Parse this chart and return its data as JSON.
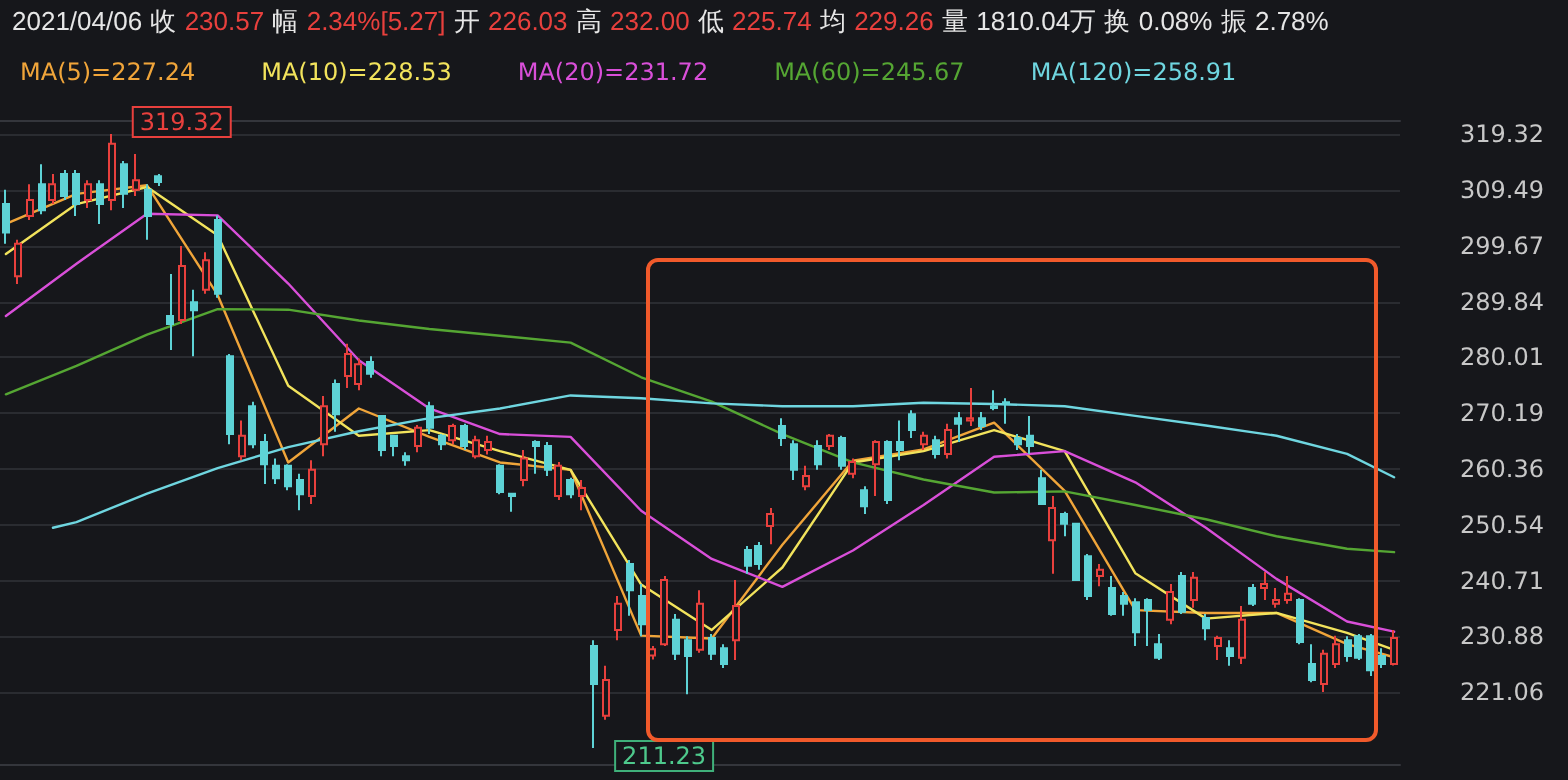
{
  "chart_data": {
    "type": "candlestick",
    "annotations": [
      "2021/04/06 收 230.57 幅 2.34%[5.27] 开 226.03 高 232.00 低 225.74 均 229.26 量 1810.04万 换 0.08% 振 2.78%",
      "319.32",
      "211.23"
    ],
    "categories": [
      null,
      null,
      null,
      null,
      null,
      null,
      null,
      null,
      null,
      null,
      null,
      null,
      null,
      null,
      null,
      null,
      null,
      null,
      null,
      null,
      null,
      null,
      null,
      null,
      null,
      null,
      null,
      null,
      null,
      null,
      null,
      null,
      null,
      null,
      null,
      null,
      null,
      null,
      null,
      null,
      null,
      null,
      null,
      null,
      null,
      null,
      null,
      null,
      null,
      null,
      null,
      null,
      null,
      null,
      null,
      null,
      null,
      null,
      null,
      null,
      null,
      null,
      null,
      null,
      null,
      null,
      null,
      null,
      null,
      null,
      null,
      null,
      null,
      null,
      null,
      null,
      null,
      null,
      null,
      null,
      null,
      null,
      null,
      null,
      null,
      null,
      null,
      null,
      null,
      null,
      null,
      null,
      null,
      null,
      null,
      null,
      null,
      null,
      null,
      null,
      null,
      null,
      null,
      null,
      null,
      null,
      null,
      null,
      null,
      null,
      null,
      null,
      null,
      null,
      null,
      null,
      null,
      null,
      null
    ],
    "colors": [
      "#5ed3d6",
      "#e8403d",
      "#e8403d",
      "#5ed3d6",
      "#e8403d",
      "#5ed3d6",
      "#5ed3d6",
      "#e8403d",
      "#5ed3d6",
      "#e8403d",
      "#5ed3d6",
      "#e8403d",
      "#5ed3d6",
      "#5ed3d6",
      "#5ed3d6",
      "#e8403d",
      "#5ed3d6",
      "#e8403d",
      "#5ed3d6",
      "#5ed3d6",
      "#e8403d",
      "#5ed3d6",
      "#5ed3d6",
      "#5ed3d6",
      "#5ed3d6",
      "#5ed3d6",
      "#e8403d",
      "#e8403d",
      "#5ed3d6",
      "#e8403d",
      "#e8403d",
      "#5ed3d6",
      "#5ed3d6",
      "#5ed3d6",
      "#5ed3d6",
      "#e8403d",
      "#5ed3d6",
      "#5ed3d6",
      "#e8403d",
      "#5ed3d6",
      "#e8403d",
      "#e8403d",
      "#5ed3d6",
      "#5ed3d6",
      "#e8403d",
      "#5ed3d6",
      "#5ed3d6",
      "#e8403d",
      "#5ed3d6",
      "#e8403d",
      "#5ed3d6",
      "#e8403d",
      "#e8403d",
      "#5ed3d6",
      "#5ed3d6",
      "#e8403d",
      "#e8403d",
      "#5ed3d6",
      "#5ed3d6",
      "#e8403d",
      "#5ed3d6",
      "#5ed3d6",
      "#e8403d",
      "#5ed3d6",
      "#5ed3d6",
      "#e8403d",
      "#5ed3d6",
      "#5ed3d6",
      "#e8403d",
      "#5ed3d6",
      "#e8403d",
      "#5ed3d6",
      "#e8403d",
      "#5ed3d6",
      "#e8403d",
      "#5ed3d6",
      "#5ed3d6",
      "#5ed3d6",
      "#e8403d",
      "#5ed3d6",
      "#e8403d",
      "#5ed3d6",
      "#e8403d",
      "#5ed3d6",
      "#5ed3d6",
      "#5ed3d6",
      "#5ed3d6",
      "#5ed3d6",
      "#5ed3d6",
      "#e8403d",
      "#5ed3d6",
      "#5ed3d6",
      "#5ed3d6",
      "#e8403d",
      "#5ed3d6",
      "#5ed3d6",
      "#5ed3d6",
      "#5ed3d6",
      "#5ed3d6",
      "#e8403d",
      "#5ed3d6",
      "#e8403d",
      "#5ed3d6",
      "#e8403d",
      "#5ed3d6",
      "#e8403d",
      "#5ed3d6",
      "#e8403d",
      "#e8403d",
      "#e8403d",
      "#5ed3d6",
      "#5ed3d6",
      "#e8403d",
      "#e8403d",
      "#5ed3d6",
      "#5ed3d6",
      "#5ed3d6",
      "#5ed3d6",
      "#e8403d"
    ],
    "ohlc": [
      [
        307.0,
        309.5,
        300.0,
        302.0
      ],
      [
        294.3,
        300.7,
        292.9,
        300.0
      ],
      [
        304.9,
        310.5,
        304.2,
        307.7
      ],
      [
        310.5,
        314.0,
        305.2,
        305.9
      ],
      [
        307.7,
        312.3,
        307.0,
        310.5
      ],
      [
        312.3,
        313.0,
        307.7,
        308.4
      ],
      [
        312.3,
        313.0,
        304.9,
        307.0
      ],
      [
        307.7,
        311.2,
        306.3,
        310.5
      ],
      [
        310.5,
        311.2,
        303.5,
        307.0
      ],
      [
        307.7,
        319.32,
        305.9,
        317.6
      ],
      [
        314.0,
        314.6,
        306.3,
        308.8
      ],
      [
        309.5,
        315.8,
        308.4,
        311.2
      ],
      [
        309.5,
        310.5,
        300.7,
        304.9
      ],
      [
        311.9,
        312.3,
        310.2,
        310.9
      ],
      [
        287.3,
        294.7,
        281.3,
        285.9
      ],
      [
        286.6,
        299.6,
        285.9,
        296.1
      ],
      [
        289.7,
        291.9,
        280.2,
        288.3
      ],
      [
        291.9,
        298.5,
        291.2,
        297.1
      ],
      [
        304.2,
        305.0,
        290.5,
        291.2
      ],
      [
        280.2,
        280.6,
        264.7,
        266.5
      ],
      [
        262.6,
        268.9,
        261.9,
        266.2
      ],
      [
        271.4,
        272.2,
        264.0,
        264.7
      ],
      [
        265.1,
        266.5,
        257.7,
        261.2
      ],
      [
        260.9,
        262.2,
        257.7,
        258.7
      ],
      [
        260.9,
        261.2,
        256.6,
        257.3
      ],
      [
        258.4,
        259.5,
        253.1,
        255.9
      ],
      [
        255.6,
        261.9,
        254.2,
        260.2
      ],
      [
        264.7,
        273.2,
        262.6,
        271.4
      ],
      [
        275.3,
        276.1,
        266.9,
        270.0
      ],
      [
        276.7,
        282.4,
        274.6,
        280.6
      ],
      [
        275.3,
        279.8,
        274.2,
        278.8
      ],
      [
        279.2,
        280.2,
        276.4,
        277.1
      ],
      [
        269.7,
        269.7,
        262.6,
        263.7
      ],
      [
        266.2,
        266.2,
        262.6,
        264.4
      ],
      [
        262.6,
        263.3,
        260.9,
        261.9
      ],
      [
        264.4,
        268.1,
        263.3,
        267.6
      ],
      [
        271.4,
        272.2,
        266.5,
        267.6
      ],
      [
        266.2,
        266.5,
        263.7,
        264.7
      ],
      [
        265.4,
        268.3,
        264.7,
        267.9
      ],
      [
        267.9,
        268.3,
        263.7,
        264.4
      ],
      [
        262.6,
        266.2,
        262.2,
        265.4
      ],
      [
        263.7,
        266.2,
        262.9,
        265.1
      ],
      [
        260.9,
        261.2,
        255.9,
        256.3
      ],
      [
        256.0,
        256.0,
        252.8,
        255.6
      ],
      [
        258.4,
        263.7,
        257.3,
        262.2
      ],
      [
        265.1,
        265.4,
        259.5,
        264.4
      ],
      [
        264.4,
        265.1,
        259.1,
        260.2
      ],
      [
        255.6,
        261.6,
        254.9,
        260.9
      ],
      [
        258.4,
        258.8,
        255.2,
        255.9
      ],
      [
        255.6,
        258.4,
        253.1,
        257.0
      ],
      [
        229.2,
        230.2,
        211.23,
        222.5
      ],
      [
        216.9,
        225.7,
        216.2,
        223.2
      ],
      [
        232.0,
        238.0,
        230.2,
        236.6
      ],
      [
        243.6,
        244.3,
        234.5,
        239.0
      ],
      [
        238.0,
        240.1,
        230.9,
        233.0
      ],
      [
        227.5,
        229.2,
        226.8,
        228.6
      ],
      [
        229.5,
        241.5,
        229.2,
        240.8
      ],
      [
        233.8,
        234.8,
        226.7,
        227.8
      ],
      [
        230.2,
        230.9,
        220.7,
        227.4
      ],
      [
        228.5,
        239.0,
        228.0,
        236.6
      ],
      [
        230.6,
        231.3,
        226.7,
        227.8
      ],
      [
        228.8,
        229.5,
        225.3,
        226.0
      ],
      [
        230.2,
        240.8,
        226.7,
        236.2
      ],
      [
        246.1,
        246.8,
        241.9,
        243.3
      ],
      [
        246.8,
        247.5,
        242.6,
        243.6
      ],
      [
        250.3,
        253.5,
        247.1,
        252.4
      ],
      [
        267.9,
        269.3,
        264.4,
        265.8
      ],
      [
        264.7,
        265.4,
        258.4,
        260.2
      ],
      [
        257.3,
        260.9,
        256.6,
        259.1
      ],
      [
        264.4,
        265.4,
        260.2,
        261.2
      ],
      [
        264.4,
        266.5,
        263.7,
        266.2
      ],
      [
        265.8,
        266.2,
        260.2,
        260.9
      ],
      [
        259.5,
        262.2,
        258.7,
        261.6
      ],
      [
        256.6,
        257.3,
        252.4,
        253.8
      ],
      [
        261.2,
        265.4,
        255.6,
        265.1
      ],
      [
        265.1,
        265.4,
        254.2,
        254.9
      ],
      [
        265.1,
        268.9,
        261.9,
        263.7
      ],
      [
        270.0,
        270.7,
        265.8,
        267.2
      ],
      [
        264.7,
        266.9,
        263.7,
        266.2
      ],
      [
        265.4,
        266.2,
        262.2,
        263.0
      ],
      [
        263.0,
        268.3,
        262.2,
        267.2
      ],
      [
        269.3,
        270.4,
        265.1,
        268.3
      ],
      [
        268.9,
        274.6,
        267.9,
        269.3
      ],
      [
        269.3,
        270.4,
        267.2,
        267.9
      ],
      [
        271.4,
        274.2,
        270.7,
        271.1
      ],
      [
        272.1,
        272.8,
        268.3,
        271.8
      ],
      [
        265.8,
        266.5,
        263.7,
        264.7
      ],
      [
        266.2,
        269.7,
        263.0,
        264.4
      ],
      [
        258.7,
        260.2,
        254.2,
        254.2
      ],
      [
        247.8,
        255.6,
        241.9,
        253.5
      ],
      [
        252.4,
        252.8,
        248.5,
        250.7
      ],
      [
        250.7,
        250.7,
        240.8,
        240.8
      ],
      [
        245.0,
        245.4,
        237.3,
        238.0
      ],
      [
        241.5,
        243.6,
        239.7,
        242.6
      ],
      [
        239.4,
        241.5,
        234.5,
        234.8
      ],
      [
        238.0,
        238.7,
        234.5,
        236.6
      ],
      [
        236.9,
        237.6,
        229.2,
        231.6
      ],
      [
        237.3,
        237.6,
        229.2,
        235.5
      ],
      [
        229.5,
        231.3,
        226.7,
        227.1
      ],
      [
        233.8,
        240.1,
        233.0,
        238.7
      ],
      [
        241.5,
        242.2,
        234.8,
        235.2
      ],
      [
        237.3,
        242.2,
        235.9,
        241.2
      ],
      [
        234.1,
        234.8,
        230.2,
        232.3
      ],
      [
        229.2,
        231.0,
        226.7,
        230.6
      ],
      [
        228.8,
        230.2,
        225.7,
        227.4
      ],
      [
        227.1,
        236.2,
        226.0,
        233.8
      ],
      [
        239.4,
        240.1,
        236.2,
        236.6
      ],
      [
        239.4,
        242.2,
        237.3,
        240.1
      ],
      [
        236.6,
        239.4,
        235.9,
        237.3
      ],
      [
        237.3,
        241.5,
        236.6,
        238.4
      ],
      [
        237.3,
        237.6,
        229.5,
        229.9
      ],
      [
        226.0,
        229.5,
        222.8,
        223.2
      ],
      [
        222.5,
        228.5,
        221.1,
        227.8
      ],
      [
        226.0,
        231.0,
        225.3,
        229.5
      ],
      [
        230.2,
        230.9,
        226.4,
        227.4
      ],
      [
        230.9,
        231.3,
        226.7,
        227.1
      ],
      [
        230.9,
        231.3,
        223.9,
        224.9
      ],
      [
        227.4,
        228.8,
        225.3,
        226.0
      ],
      [
        226.03,
        232.0,
        225.74,
        230.57
      ]
    ],
    "series": [
      {
        "type": "line",
        "name": "MA(5)=227.24",
        "color": "#f0a53a",
        "values": [
          303.5,
          null,
          null,
          null,
          null,
          null,
          308.8,
          null,
          null,
          null,
          null,
          null,
          310.3,
          null,
          null,
          null,
          null,
          null,
          291.0,
          null,
          null,
          null,
          null,
          null,
          261.5,
          null,
          null,
          null,
          null,
          null,
          271.0,
          null,
          null,
          null,
          null,
          null,
          266.0,
          null,
          null,
          null,
          null,
          null,
          261.5,
          null,
          null,
          null,
          null,
          null,
          260.2,
          null,
          null,
          null,
          null,
          null,
          231.0,
          null,
          null,
          null,
          null,
          null,
          230.5,
          null,
          null,
          null,
          null,
          null,
          247.0,
          null,
          null,
          null,
          null,
          null,
          261.8,
          null,
          null,
          null,
          null,
          null,
          263.8,
          null,
          null,
          null,
          null,
          null,
          268.5,
          null,
          null,
          null,
          null,
          null,
          256.5,
          null,
          null,
          null,
          null,
          null,
          235.5,
          null,
          null,
          null,
          null,
          null,
          235.0,
          null,
          null,
          null,
          null,
          null,
          235.0,
          null,
          null,
          null,
          null,
          null,
          229.5,
          null,
          null,
          null,
          227.2
        ]
      },
      {
        "type": "line",
        "name": "MA(10)=228.53",
        "color": "#f2e35c",
        "values": [
          298.2,
          null,
          null,
          null,
          null,
          null,
          307.0,
          null,
          null,
          null,
          null,
          null,
          310.0,
          null,
          null,
          null,
          null,
          null,
          301.5,
          null,
          null,
          null,
          null,
          null,
          275.0,
          null,
          null,
          null,
          null,
          null,
          266.2,
          null,
          null,
          null,
          null,
          null,
          267.2,
          null,
          null,
          null,
          null,
          null,
          263.5,
          null,
          null,
          null,
          null,
          null,
          260.2,
          null,
          null,
          null,
          null,
          null,
          240.0,
          null,
          null,
          null,
          null,
          null,
          232.0,
          null,
          null,
          null,
          null,
          null,
          243.0,
          null,
          null,
          null,
          null,
          null,
          261.5,
          null,
          null,
          null,
          null,
          null,
          263.5,
          null,
          null,
          null,
          null,
          null,
          267.2,
          null,
          null,
          null,
          null,
          null,
          263.5,
          null,
          null,
          null,
          null,
          null,
          242.0,
          null,
          null,
          null,
          null,
          null,
          234.0,
          null,
          null,
          null,
          null,
          null,
          235.0,
          null,
          null,
          null,
          null,
          null,
          231.5,
          null,
          null,
          null,
          228.5
        ]
      },
      {
        "type": "line",
        "name": "MA(20)=231.72",
        "color": "#d94fd9",
        "values": [
          287.3,
          null,
          null,
          null,
          null,
          null,
          296.5,
          null,
          null,
          null,
          null,
          null,
          305.3,
          null,
          null,
          null,
          null,
          null,
          305.0,
          null,
          null,
          null,
          null,
          null,
          293.0,
          null,
          null,
          null,
          null,
          null,
          279.5,
          null,
          null,
          null,
          null,
          null,
          271.0,
          null,
          null,
          null,
          null,
          null,
          266.5,
          null,
          null,
          null,
          null,
          null,
          266.0,
          null,
          null,
          null,
          null,
          null,
          253.0,
          null,
          null,
          null,
          null,
          null,
          244.5,
          null,
          null,
          null,
          null,
          null,
          239.6,
          null,
          null,
          null,
          null,
          null,
          246.0,
          null,
          null,
          null,
          null,
          null,
          254.0,
          null,
          null,
          null,
          null,
          null,
          262.5,
          null,
          null,
          null,
          null,
          null,
          263.5,
          null,
          null,
          null,
          null,
          null,
          258.0,
          null,
          null,
          null,
          null,
          null,
          250.0,
          null,
          null,
          null,
          null,
          null,
          241.0,
          null,
          null,
          null,
          null,
          null,
          233.5,
          null,
          null,
          null,
          231.7
        ]
      },
      {
        "type": "line",
        "name": "MA(60)=245.67",
        "color": "#55a633",
        "values": [
          273.5,
          null,
          null,
          null,
          null,
          null,
          278.5,
          null,
          null,
          null,
          null,
          null,
          284.0,
          null,
          null,
          null,
          null,
          null,
          288.5,
          null,
          null,
          null,
          null,
          null,
          288.4,
          null,
          null,
          null,
          null,
          null,
          286.5,
          null,
          null,
          null,
          null,
          null,
          285.0,
          null,
          null,
          null,
          null,
          null,
          283.8,
          null,
          null,
          null,
          null,
          null,
          282.6,
          null,
          null,
          null,
          null,
          null,
          276.5,
          null,
          null,
          null,
          null,
          null,
          272.2,
          null,
          null,
          null,
          null,
          null,
          266.5,
          null,
          null,
          null,
          null,
          null,
          261.5,
          null,
          null,
          null,
          null,
          null,
          258.5,
          null,
          null,
          null,
          null,
          null,
          256.2,
          null,
          null,
          null,
          null,
          null,
          256.4,
          null,
          null,
          null,
          null,
          null,
          254.0,
          null,
          null,
          null,
          null,
          null,
          251.5,
          null,
          null,
          null,
          null,
          null,
          248.5,
          null,
          null,
          null,
          null,
          null,
          246.3,
          null,
          null,
          null,
          245.7
        ]
      },
      {
        "type": "line",
        "name": "MA(120)=258.91",
        "color": "#6fd6e0",
        "values": [
          null,
          null,
          null,
          null,
          250.0,
          null,
          251.0,
          null,
          null,
          null,
          null,
          null,
          256.0,
          null,
          null,
          null,
          null,
          null,
          260.5,
          null,
          null,
          null,
          null,
          null,
          264.2,
          null,
          null,
          null,
          null,
          null,
          267.0,
          null,
          null,
          null,
          null,
          null,
          269.3,
          null,
          null,
          null,
          null,
          null,
          271.0,
          null,
          null,
          null,
          null,
          null,
          273.3,
          null,
          null,
          null,
          null,
          null,
          272.8,
          null,
          null,
          null,
          null,
          null,
          271.9,
          null,
          null,
          null,
          null,
          null,
          271.4,
          null,
          null,
          null,
          null,
          null,
          271.4,
          null,
          null,
          null,
          null,
          null,
          272.0,
          null,
          null,
          null,
          null,
          null,
          271.8,
          null,
          null,
          null,
          null,
          null,
          271.4,
          null,
          null,
          null,
          null,
          null,
          269.7,
          null,
          null,
          null,
          null,
          null,
          268.0,
          null,
          null,
          null,
          null,
          null,
          266.2,
          null,
          null,
          null,
          null,
          null,
          263.0,
          null,
          null,
          null,
          258.9
        ]
      }
    ],
    "ylim": [
      208.4,
      321.8
    ],
    "yticks": [
      221.06,
      230.88,
      240.71,
      250.54,
      260.36,
      270.19,
      280.01,
      289.84,
      299.67,
      309.49,
      319.32
    ],
    "tick_labels": "y",
    "grid": "y",
    "legend": "top left",
    "line_style": "solid"
  }
}
